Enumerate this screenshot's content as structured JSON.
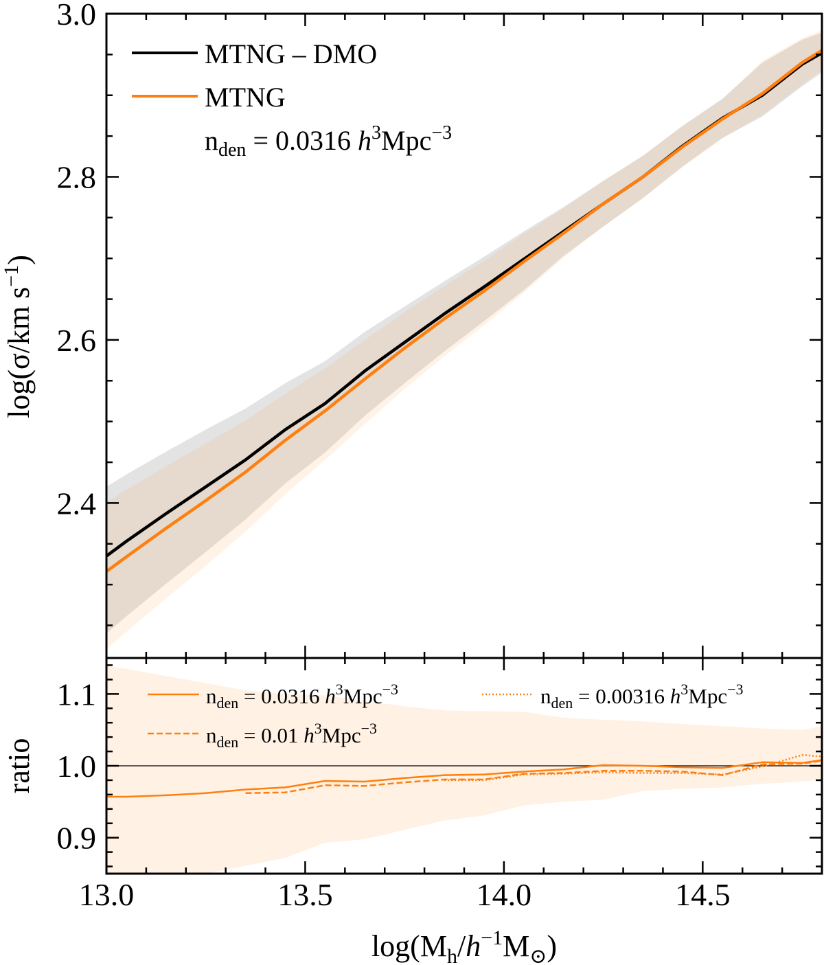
{
  "chart_data": [
    {
      "type": "line",
      "panel": "main",
      "ylabel": {
        "base": "log(σ/km s",
        "exp": "−1",
        "close": ")"
      },
      "xlim": [
        13.0,
        14.8
      ],
      "ylim": [
        2.21,
        3.0
      ],
      "yticks": [
        2.4,
        2.6,
        2.8,
        3.0
      ],
      "ytick_labels": [
        "2.4",
        "2.6",
        "2.8",
        "3.0"
      ],
      "grid": false,
      "legend_position": "top-left",
      "x": [
        13.0,
        13.05,
        13.15,
        13.25,
        13.35,
        13.45,
        13.55,
        13.65,
        13.75,
        13.85,
        13.95,
        14.05,
        14.15,
        14.25,
        14.35,
        14.45,
        14.55,
        14.65,
        14.75,
        14.8
      ],
      "series": [
        {
          "name": "MTNG – DMO",
          "color": "#000000",
          "band_color": "#000000",
          "values": [
            2.335,
            2.353,
            2.387,
            2.42,
            2.453,
            2.49,
            2.522,
            2.562,
            2.597,
            2.632,
            2.665,
            2.699,
            2.733,
            2.767,
            2.8,
            2.838,
            2.872,
            2.9,
            2.938,
            2.952
          ],
          "band_upper": [
            2.42,
            2.435,
            2.463,
            2.49,
            2.516,
            2.547,
            2.574,
            2.61,
            2.641,
            2.672,
            2.702,
            2.733,
            2.763,
            2.795,
            2.826,
            2.863,
            2.896,
            2.94,
            2.968,
            2.977
          ],
          "band_lower": [
            2.24,
            2.261,
            2.301,
            2.34,
            2.38,
            2.424,
            2.462,
            2.507,
            2.547,
            2.586,
            2.623,
            2.661,
            2.703,
            2.739,
            2.774,
            2.813,
            2.848,
            2.874,
            2.911,
            2.928
          ]
        },
        {
          "name": "MTNG",
          "color": "#ff7f0e",
          "band_color": "#ff8a1a",
          "values": [
            2.316,
            2.334,
            2.369,
            2.403,
            2.438,
            2.477,
            2.513,
            2.552,
            2.59,
            2.626,
            2.66,
            2.696,
            2.731,
            2.767,
            2.8,
            2.837,
            2.871,
            2.902,
            2.94,
            2.955
          ],
          "band_upper": [
            2.401,
            2.416,
            2.445,
            2.473,
            2.501,
            2.534,
            2.565,
            2.6,
            2.634,
            2.666,
            2.697,
            2.73,
            2.761,
            2.795,
            2.826,
            2.862,
            2.895,
            2.942,
            2.97,
            2.98
          ],
          "band_lower": [
            2.221,
            2.242,
            2.283,
            2.323,
            2.365,
            2.411,
            2.453,
            2.497,
            2.54,
            2.58,
            2.618,
            2.658,
            2.701,
            2.739,
            2.774,
            2.812,
            2.847,
            2.876,
            2.913,
            2.931
          ]
        }
      ],
      "annotation": {
        "base": "n",
        "sub": "den",
        "eq": " = 0.0316 ",
        "h": "h",
        "h_exp": "3",
        "unit": "Mpc",
        "unit_exp": "−3"
      }
    },
    {
      "type": "line",
      "panel": "ratio",
      "ylabel": "ratio",
      "xlabel": {
        "open": "log(M",
        "sub": "h",
        "slash": "/",
        "h": "h",
        "h_exp": "−1",
        "m": "M",
        "sun": "⊙",
        "close": ")"
      },
      "xlim": [
        13.0,
        14.8
      ],
      "ylim": [
        0.85,
        1.15
      ],
      "xticks": [
        13.0,
        13.5,
        14.0,
        14.5
      ],
      "xtick_labels": [
        "13.0",
        "13.5",
        "14.0",
        "14.5"
      ],
      "yticks": [
        0.9,
        1.0,
        1.1
      ],
      "ytick_labels": [
        "0.9",
        "1.0",
        "1.1"
      ],
      "reference_line": 1.0,
      "grid": false,
      "legend_position": "top",
      "band": {
        "color": "#ff8a1a",
        "x": [
          13.0,
          13.05,
          13.15,
          13.25,
          13.35,
          13.45,
          13.55,
          13.65,
          13.75,
          13.85,
          13.95,
          14.05,
          14.15,
          14.25,
          14.35,
          14.45,
          14.55,
          14.65,
          14.75,
          14.8
        ],
        "upper": [
          1.139,
          1.135,
          1.125,
          1.115,
          1.105,
          1.1,
          1.098,
          1.09,
          1.083,
          1.077,
          1.076,
          1.075,
          1.067,
          1.064,
          1.062,
          1.058,
          1.055,
          1.052,
          1.05,
          1.055
        ],
        "lower": [
          0.82,
          0.83,
          0.84,
          0.848,
          0.861,
          0.872,
          0.893,
          0.898,
          0.911,
          0.924,
          0.931,
          0.945,
          0.95,
          0.953,
          0.965,
          0.968,
          0.97,
          0.975,
          0.978,
          0.981
        ]
      },
      "series": [
        {
          "label": {
            "base": "n",
            "sub": "den",
            "eq": " = 0.0316 ",
            "h": "h",
            "h_exp": "3",
            "unit": "Mpc",
            "unit_exp": "−3"
          },
          "style": "solid",
          "color": "#ff7f0e",
          "x": [
            13.0,
            13.05,
            13.15,
            13.25,
            13.35,
            13.45,
            13.55,
            13.65,
            13.75,
            13.85,
            13.95,
            14.05,
            14.15,
            14.25,
            14.35,
            14.45,
            14.55,
            14.65,
            14.75,
            14.8
          ],
          "values": [
            0.957,
            0.957,
            0.959,
            0.962,
            0.967,
            0.97,
            0.979,
            0.978,
            0.983,
            0.987,
            0.988,
            0.992,
            0.995,
            1.001,
            1.0,
            0.998,
            0.997,
            1.005,
            1.004,
            1.008
          ]
        },
        {
          "label": {
            "base": "n",
            "sub": "den",
            "eq": " = 0.01 ",
            "h": "h",
            "h_exp": "3",
            "unit": "Mpc",
            "unit_exp": "−3"
          },
          "style": "dashed",
          "color": "#ff7f0e",
          "x": [
            13.35,
            13.45,
            13.55,
            13.65,
            13.75,
            13.85,
            13.95,
            14.05,
            14.15,
            14.25,
            14.35,
            14.45,
            14.55,
            14.65,
            14.75,
            14.8
          ],
          "values": [
            0.962,
            0.963,
            0.973,
            0.972,
            0.977,
            0.981,
            0.981,
            0.989,
            0.99,
            0.993,
            0.993,
            0.992,
            0.987,
            1.002,
            1.003,
            1.007
          ]
        },
        {
          "label": {
            "base": "n",
            "sub": "den",
            "eq": " = 0.00316 ",
            "h": "h",
            "h_exp": "3",
            "unit": "Mpc",
            "unit_exp": "−3"
          },
          "style": "dotted",
          "color": "#ff7f0e",
          "x": [
            13.85,
            13.95,
            14.05,
            14.15,
            14.25,
            14.35,
            14.45,
            14.55,
            14.65,
            14.75,
            14.8
          ],
          "values": [
            0.98,
            0.98,
            0.988,
            0.989,
            0.991,
            0.99,
            0.99,
            0.988,
            0.999,
            1.015,
            1.013
          ]
        }
      ]
    }
  ]
}
